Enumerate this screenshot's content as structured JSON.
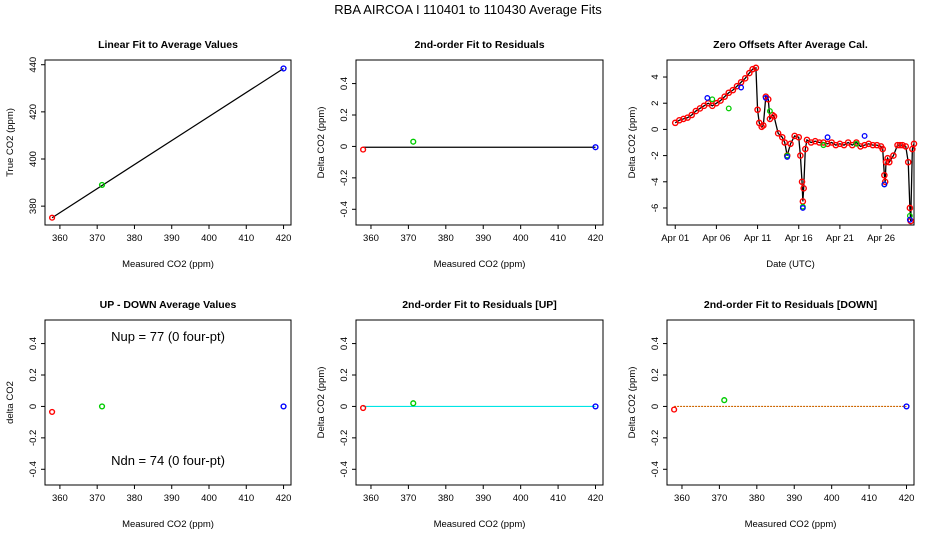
{
  "title": "RBA   AIRCOA I   110401 to 110430   Average Fits",
  "chart_data": [
    {
      "id": "p1",
      "type": "scatter",
      "title": "Linear Fit to Average Values",
      "xlabel": "Measured CO2 (ppm)",
      "ylabel": "True CO2 (ppm)",
      "xlim": [
        356,
        422
      ],
      "ylim": [
        372,
        442
      ],
      "xticks": [
        360,
        370,
        380,
        390,
        400,
        410,
        420
      ],
      "yticks": [
        380,
        400,
        420,
        440
      ],
      "points": [
        {
          "x": 357.9,
          "y": 375.1,
          "color": "#ff0000"
        },
        {
          "x": 371.3,
          "y": 389.0,
          "color": "#00cc00"
        },
        {
          "x": 420.0,
          "y": 438.4,
          "color": "#0000ff"
        }
      ],
      "line": {
        "x": [
          357.9,
          420.0
        ],
        "y": [
          375.1,
          438.4
        ],
        "color": "#000000"
      }
    },
    {
      "id": "p2",
      "type": "scatter",
      "title": "2nd-order Fit to Residuals",
      "xlabel": "Measured CO2 (ppm)",
      "ylabel": "Delta CO2 (ppm)",
      "xlim": [
        356,
        422
      ],
      "ylim": [
        -0.5,
        0.55
      ],
      "xticks": [
        360,
        370,
        380,
        390,
        400,
        410,
        420
      ],
      "yticks": [
        -0.4,
        -0.2,
        0.0,
        0.2,
        0.4
      ],
      "points": [
        {
          "x": 357.9,
          "y": -0.02,
          "color": "#ff0000"
        },
        {
          "x": 371.3,
          "y": 0.03,
          "color": "#00cc00"
        },
        {
          "x": 420.0,
          "y": -0.005,
          "color": "#0000ff"
        }
      ],
      "line": {
        "x": [
          357.9,
          420.0
        ],
        "y": [
          -0.005,
          -0.005
        ],
        "color": "#000000"
      }
    },
    {
      "id": "p3",
      "type": "line",
      "title": "Zero Offsets After Average Cal.",
      "xlabel": "Date (UTC)",
      "ylabel": "Delta CO2 (ppm)",
      "xlim": [
        0,
        30
      ],
      "ylim": [
        -7.3,
        5.3
      ],
      "xtick_pos": [
        1,
        6,
        11,
        16,
        21,
        26
      ],
      "xtick_labels": [
        "Apr 01",
        "Apr 06",
        "Apr 11",
        "Apr 16",
        "Apr 21",
        "Apr 26"
      ],
      "yticks": [
        -6,
        -4,
        -2,
        0,
        2,
        4
      ],
      "series": [
        {
          "x": [
            1.0,
            1.5,
            2.0,
            2.5,
            3.0,
            3.5,
            4.0,
            4.5,
            5.0,
            5.5,
            6.0,
            6.5,
            7.0,
            7.5,
            8.0,
            8.5,
            9.0,
            9.5,
            10.0,
            10.4,
            10.8,
            11.0,
            11.2,
            11.5,
            11.7,
            12.0,
            12.3,
            12.5,
            12.8,
            13.0,
            13.5,
            14.0,
            14.3,
            14.6,
            15.0,
            15.5,
            16.0,
            16.2,
            16.4,
            16.5,
            16.6,
            16.8,
            17.0,
            17.5,
            18.0,
            18.5,
            19.0,
            19.5,
            20.0,
            20.5,
            21.0,
            21.5,
            22.0,
            22.5,
            23.0,
            23.5,
            24.0,
            24.5,
            25.0,
            25.5,
            26.0,
            26.2,
            26.4,
            26.5,
            26.6,
            26.8,
            27.0,
            27.5,
            28.0,
            28.3,
            28.6,
            29.0,
            29.3,
            29.5,
            29.6,
            29.8,
            30.0
          ],
          "y": [
            0.5,
            0.7,
            0.8,
            0.9,
            1.1,
            1.4,
            1.6,
            1.8,
            2.0,
            1.8,
            2.0,
            2.2,
            2.5,
            2.8,
            3.0,
            3.3,
            3.6,
            3.9,
            4.3,
            4.6,
            4.7,
            1.5,
            0.5,
            0.2,
            0.3,
            2.5,
            2.3,
            0.8,
            1.1,
            1.0,
            -0.3,
            -0.6,
            -1.0,
            -2.0,
            -1.1,
            -0.5,
            -0.6,
            -2.0,
            -4.0,
            -5.5,
            -4.5,
            -1.5,
            -0.8,
            -1.0,
            -0.9,
            -1.0,
            -1.0,
            -1.1,
            -1.0,
            -1.2,
            -1.1,
            -1.2,
            -1.0,
            -1.2,
            -1.0,
            -1.3,
            -1.2,
            -1.1,
            -1.2,
            -1.2,
            -1.3,
            -1.5,
            -3.5,
            -4.0,
            -2.5,
            -2.2,
            -2.5,
            -2.0,
            -1.2,
            -1.2,
            -1.2,
            -1.3,
            -2.5,
            -6.0,
            -7.0,
            -1.5,
            -1.1
          ],
          "color": "#000000",
          "marker_color": "#ff0000"
        },
        {
          "x": [
            5.5,
            7.5,
            12.5,
            14.6,
            16.5,
            19.0,
            23.0,
            26.4,
            29.5
          ],
          "y": [
            2.3,
            1.6,
            1.4,
            -2.0,
            -5.9,
            -1.2,
            -1.1,
            -4.2,
            -6.6
          ],
          "color": "#00cc00"
        },
        {
          "x": [
            4.9,
            9.0,
            12.0,
            14.6,
            16.5,
            19.5,
            24.0,
            26.4,
            29.5
          ],
          "y": [
            2.4,
            3.2,
            2.4,
            -2.1,
            -6.0,
            -0.6,
            -0.5,
            -4.2,
            -6.9
          ],
          "color": "#0000ff"
        }
      ]
    },
    {
      "id": "p4",
      "type": "scatter",
      "title": "UP - DOWN Average Values",
      "xlabel": "Measured CO2 (ppm)",
      "ylabel": "delta CO2",
      "xlim": [
        356,
        422
      ],
      "ylim": [
        -0.5,
        0.55
      ],
      "xticks": [
        360,
        370,
        380,
        390,
        400,
        410,
        420
      ],
      "yticks": [
        -0.4,
        -0.2,
        0.0,
        0.2,
        0.4
      ],
      "points": [
        {
          "x": 357.9,
          "y": -0.035,
          "color": "#ff0000"
        },
        {
          "x": 371.3,
          "y": 0.0,
          "color": "#00cc00"
        },
        {
          "x": 420.0,
          "y": 0.0,
          "color": "#0000ff"
        }
      ],
      "annotations": [
        "Nup = 77 (0 four-pt)",
        "Ndn = 74 (0 four-pt)"
      ]
    },
    {
      "id": "p5",
      "type": "scatter",
      "title": "2nd-order Fit to Residuals [UP]",
      "xlabel": "Measured CO2 (ppm)",
      "ylabel": "Delta CO2 (ppm)",
      "xlim": [
        356,
        422
      ],
      "ylim": [
        -0.5,
        0.55
      ],
      "xticks": [
        360,
        370,
        380,
        390,
        400,
        410,
        420
      ],
      "yticks": [
        -0.4,
        -0.2,
        0.0,
        0.2,
        0.4
      ],
      "points": [
        {
          "x": 357.9,
          "y": -0.01,
          "color": "#ff0000"
        },
        {
          "x": 371.3,
          "y": 0.02,
          "color": "#00cc00"
        },
        {
          "x": 420.0,
          "y": 0.0,
          "color": "#0000ff"
        }
      ],
      "line": {
        "x": [
          357.9,
          420.0
        ],
        "y": [
          0.0,
          0.0
        ],
        "color": "#00e5e5"
      }
    },
    {
      "id": "p6",
      "type": "scatter",
      "title": "2nd-order Fit to Residuals [DOWN]",
      "xlabel": "Measured CO2 (ppm)",
      "ylabel": "Delta CO2 (ppm)",
      "xlim": [
        356,
        422
      ],
      "ylim": [
        -0.5,
        0.55
      ],
      "xticks": [
        360,
        370,
        380,
        390,
        400,
        410,
        420
      ],
      "yticks": [
        -0.4,
        -0.2,
        0.0,
        0.2,
        0.4
      ],
      "points": [
        {
          "x": 357.9,
          "y": -0.02,
          "color": "#ff0000"
        },
        {
          "x": 371.3,
          "y": 0.04,
          "color": "#00cc00"
        },
        {
          "x": 420.0,
          "y": 0.0,
          "color": "#0000ff"
        }
      ],
      "line": {
        "x": [
          357.9,
          420.0
        ],
        "y": [
          0.0,
          0.0
        ],
        "color": "#cc6600",
        "dash": true
      }
    }
  ]
}
